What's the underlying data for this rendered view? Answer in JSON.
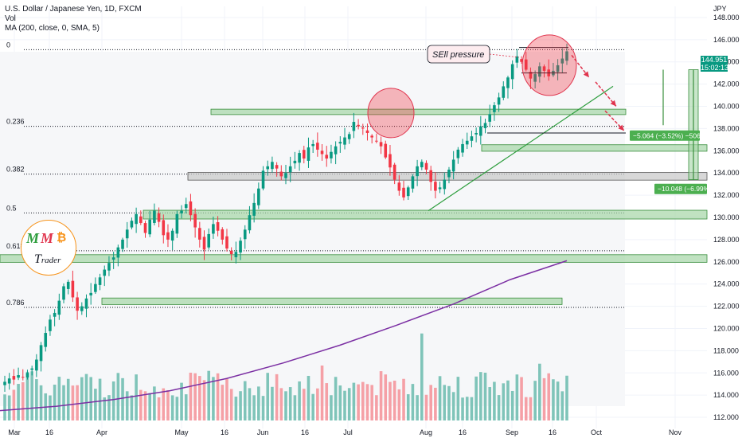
{
  "legend": {
    "title": "U.S. Dollar / Japanese Yen, 1D, FXCM",
    "vol": "Vol",
    "ma": "MA (200, close, 0, SMA, 5)"
  },
  "currency": "JPY",
  "price_tag": {
    "value": "144.951",
    "countdown": "15:02:13"
  },
  "annotations": {
    "sell_pressure": "SEll pressure",
    "measure1": "−5.064 (−3.52%) −506.4",
    "measure2": "−10.048 (−6.99%) −"
  },
  "logo": {
    "m1": "M",
    "m2": "M",
    "b": "₿",
    "t": "T",
    "rader": "rader"
  },
  "colors": {
    "up": "#089981",
    "down": "#f23645",
    "vol_up": "#7fc4b9",
    "vol_down": "#f5a0a6",
    "ma": "#7b2fa3",
    "zone": "#a5d6a7",
    "zone_border": "#388e3c",
    "grey_zone": "#c8c8c8",
    "arrow": "#e0344d",
    "trend": "#2e9e3e"
  },
  "chart_data": {
    "type": "candlestick",
    "title": "U.S. Dollar / Japanese Yen, 1D, FXCM",
    "ylabel": "JPY",
    "ylim": [
      111.0,
      149.0
    ],
    "y_ticks": [
      112,
      114,
      116,
      118,
      120,
      122,
      124,
      126,
      128,
      130,
      132,
      134,
      136,
      138,
      140,
      142,
      144,
      146,
      148
    ],
    "x_ticks": [
      "Mar",
      "16",
      "Apr",
      "May",
      "16",
      "Jun",
      "16",
      "Jul",
      "Aug",
      "16",
      "Sep",
      "16",
      "Oct",
      "Nov"
    ],
    "fib_levels": [
      {
        "label": "0",
        "price": 145.1
      },
      {
        "label": "0.236",
        "price": 138.2
      },
      {
        "label": "0.382",
        "price": 133.9
      },
      {
        "label": "0.5",
        "price": 130.4
      },
      {
        "label": "0.618",
        "price": 127.0
      },
      {
        "label": "0.786",
        "price": 121.9
      }
    ],
    "zones": [
      {
        "from": 139.4,
        "to": 139.6
      },
      {
        "from": 136.1,
        "to": 136.4
      },
      {
        "from": 133.5,
        "to": 133.9
      },
      {
        "from": 130.0,
        "to": 130.5
      },
      {
        "from": 126.1,
        "to": 126.5
      },
      {
        "from": 122.3,
        "to": 122.6
      }
    ],
    "close_path": [
      115.2,
      115.5,
      115.4,
      115.8,
      115.6,
      116.0,
      116.4,
      117.2,
      118.5,
      119.6,
      120.8,
      121.4,
      122.5,
      123.8,
      124.2,
      122.8,
      121.6,
      122.0,
      122.7,
      123.2,
      124.0,
      124.6,
      125.3,
      125.9,
      126.4,
      127.3,
      128.0,
      128.9,
      129.7,
      130.3,
      129.5,
      128.6,
      129.8,
      130.6,
      129.6,
      128.4,
      128.0,
      128.8,
      130.3,
      130.6,
      131.2,
      130.2,
      129.1,
      128.0,
      127.1,
      128.5,
      129.4,
      128.8,
      128.0,
      127.2,
      126.7,
      126.9,
      127.9,
      128.9,
      130.2,
      131.3,
      132.6,
      134.2,
      134.6,
      135.0,
      134.4,
      133.7,
      134.0,
      134.6,
      135.1,
      135.8,
      135.3,
      136.3,
      136.6,
      136.1,
      135.7,
      135.3,
      135.9,
      136.4,
      136.8,
      137.2,
      137.5,
      138.6,
      138.2,
      138.0,
      137.6,
      137.2,
      136.9,
      136.4,
      135.4,
      134.5,
      133.4,
      132.4,
      131.8,
      132.7,
      133.7,
      134.6,
      135.0,
      134.3,
      133.2,
      132.4,
      132.7,
      133.4,
      134.3,
      135.2,
      136.1,
      136.6,
      136.9,
      137.3,
      137.6,
      138.2,
      138.5,
      139.3,
      140.1,
      140.8,
      141.8,
      142.6,
      143.8,
      144.5,
      144.0,
      143.3,
      142.5,
      142.9,
      143.6,
      143.2,
      142.7,
      143.2,
      143.7,
      144.3,
      144.95
    ],
    "ma200_path": [
      [
        0.0,
        112.6
      ],
      [
        0.1,
        113.0
      ],
      [
        0.2,
        113.6
      ],
      [
        0.3,
        114.4
      ],
      [
        0.4,
        115.5
      ],
      [
        0.5,
        116.9
      ],
      [
        0.6,
        118.5
      ],
      [
        0.7,
        120.3
      ],
      [
        0.8,
        122.2
      ],
      [
        0.9,
        124.4
      ],
      [
        1.0,
        126.1
      ]
    ],
    "volume_max": 100
  }
}
